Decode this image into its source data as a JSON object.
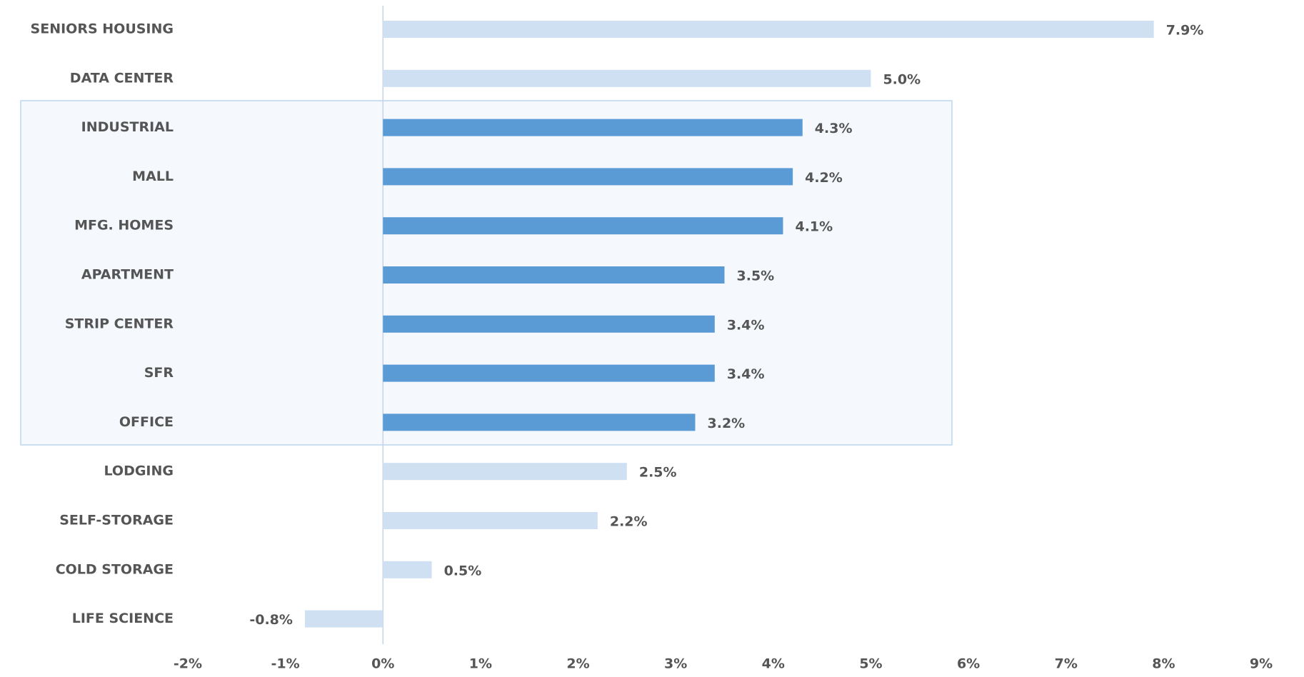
{
  "chart_data": {
    "type": "bar",
    "orientation": "horizontal",
    "categories": [
      "SENIORS HOUSING",
      "DATA CENTER",
      "INDUSTRIAL",
      "MALL",
      "MFG. HOMES",
      "APARTMENT",
      "STRIP CENTER",
      "SFR",
      "OFFICE",
      "LODGING",
      "SELF-STORAGE",
      "COLD STORAGE",
      "LIFE SCIENCE"
    ],
    "values": [
      7.9,
      5.0,
      4.3,
      4.2,
      4.1,
      3.5,
      3.4,
      3.4,
      3.2,
      2.5,
      2.2,
      0.5,
      -0.8
    ],
    "value_labels": [
      "7.9%",
      "5.0%",
      "4.3%",
      "4.2%",
      "4.1%",
      "3.5%",
      "3.4%",
      "3.4%",
      "3.2%",
      "2.5%",
      "2.2%",
      "0.5%",
      "-0.8%"
    ],
    "colors": [
      "#d0e0f3",
      "#d0e0f3",
      "#5b9bd5",
      "#5b9bd5",
      "#5b9bd5",
      "#5b9bd5",
      "#5b9bd5",
      "#5b9bd5",
      "#5b9bd5",
      "#d0e0f3",
      "#d0e0f3",
      "#d0e0f3",
      "#d0e0f3"
    ],
    "xlim": [
      -2,
      9
    ],
    "xticks": [
      {
        "value": -2,
        "label": "-2%"
      },
      {
        "value": -1,
        "label": "-1%"
      },
      {
        "value": 0,
        "label": "0%"
      },
      {
        "value": 1,
        "label": "1%"
      },
      {
        "value": 2,
        "label": "2%"
      },
      {
        "value": 3,
        "label": "3%"
      },
      {
        "value": 4,
        "label": "4%"
      },
      {
        "value": 5,
        "label": "5%"
      },
      {
        "value": 6,
        "label": "6%"
      },
      {
        "value": 7,
        "label": "7%"
      },
      {
        "value": 8,
        "label": "8%"
      },
      {
        "value": 9,
        "label": "9%"
      }
    ]
  }
}
